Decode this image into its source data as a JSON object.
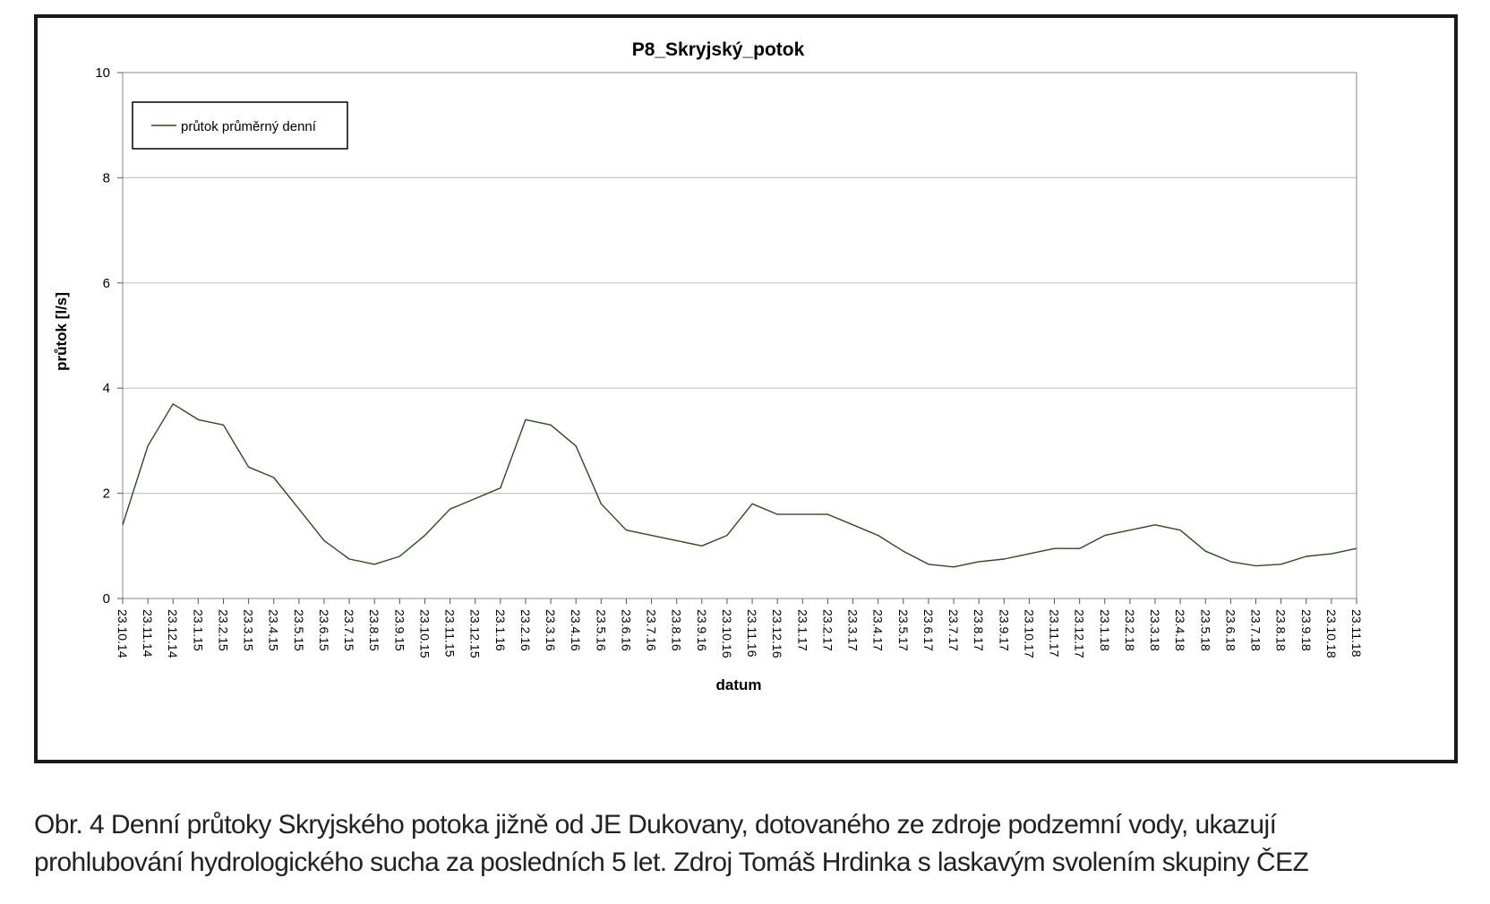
{
  "caption": {
    "line1": "Obr. 4 Denní průtoky Skryjského potoka jižně od JE Dukovany, dotovaného ze zdroje podzemní vody, ukazují",
    "line2": "prohlubování hydrologického sucha za posledních 5 let. Zdroj Tomáš Hrdinka s laskavým svolením skupiny ČEZ"
  },
  "chart_data": {
    "type": "line",
    "title": "P8_Skryjský_potok",
    "xlabel": "datum",
    "ylabel": "průtok [l/s]",
    "ylim": [
      0,
      10
    ],
    "yticks": [
      0,
      2,
      4,
      6,
      8,
      10
    ],
    "grid": "horizontal",
    "legend_position": "top-left",
    "line_color": "#2d4a22",
    "x_tick_labels": [
      "23.10.14",
      "23.11.14",
      "23.12.14",
      "23.1.15",
      "23.2.15",
      "23.3.15",
      "23.4.15",
      "23.5.15",
      "23.6.15",
      "23.7.15",
      "23.8.15",
      "23.9.15",
      "23.10.15",
      "23.11.15",
      "23.12.15",
      "23.1.16",
      "23.2.16",
      "23.3.16",
      "23.4.16",
      "23.5.16",
      "23.6.16",
      "23.7.16",
      "23.8.16",
      "23.9.16",
      "23.10.16",
      "23.11.16",
      "23.12.16",
      "23.1.17",
      "23.2.17",
      "23.3.17",
      "23.4.17",
      "23.5.17",
      "23.6.17",
      "23.7.17",
      "23.8.17",
      "23.9.17",
      "23.10.17",
      "23.11.17",
      "23.12.17",
      "23.1.18",
      "23.2.18",
      "23.3.18",
      "23.4.18",
      "23.5.18",
      "23.6.18",
      "23.7.18",
      "23.8.18",
      "23.9.18",
      "23.10.18",
      "23.11.18"
    ],
    "series": [
      {
        "name": "průtok průměrný denní",
        "x": [
          "23.10.14",
          "23.11.14",
          "23.12.14",
          "23.1.15",
          "23.2.15",
          "23.3.15",
          "23.4.15",
          "23.5.15",
          "23.6.15",
          "23.7.15",
          "23.8.15",
          "23.9.15",
          "23.10.15",
          "23.11.15",
          "23.12.15",
          "23.1.16",
          "23.2.16",
          "23.3.16",
          "23.4.16",
          "23.5.16",
          "23.6.16",
          "23.7.16",
          "23.8.16",
          "23.9.16",
          "23.10.16",
          "23.11.16",
          "23.12.16",
          "23.1.17",
          "23.2.17",
          "23.3.17",
          "23.4.17",
          "23.5.17",
          "23.6.17",
          "23.7.17",
          "23.8.17",
          "23.9.17",
          "23.10.17",
          "23.11.17",
          "23.12.17",
          "23.1.18",
          "23.2.18",
          "23.3.18",
          "23.4.18",
          "23.5.18",
          "23.6.18",
          "23.7.18",
          "23.8.18",
          "23.9.18",
          "23.10.18",
          "23.11.18"
        ],
        "values": [
          1.4,
          2.9,
          3.7,
          3.4,
          3.3,
          2.5,
          2.3,
          1.7,
          1.1,
          0.75,
          0.65,
          0.8,
          1.2,
          1.7,
          1.9,
          2.1,
          3.4,
          3.3,
          2.9,
          1.8,
          1.3,
          1.2,
          1.1,
          1.0,
          1.2,
          1.8,
          1.6,
          1.6,
          1.6,
          1.4,
          1.2,
          0.9,
          0.65,
          0.6,
          0.7,
          0.75,
          0.85,
          0.95,
          0.95,
          1.2,
          1.3,
          1.4,
          1.3,
          0.9,
          0.7,
          0.62,
          0.65,
          0.8,
          0.85,
          0.95
        ]
      }
    ]
  }
}
